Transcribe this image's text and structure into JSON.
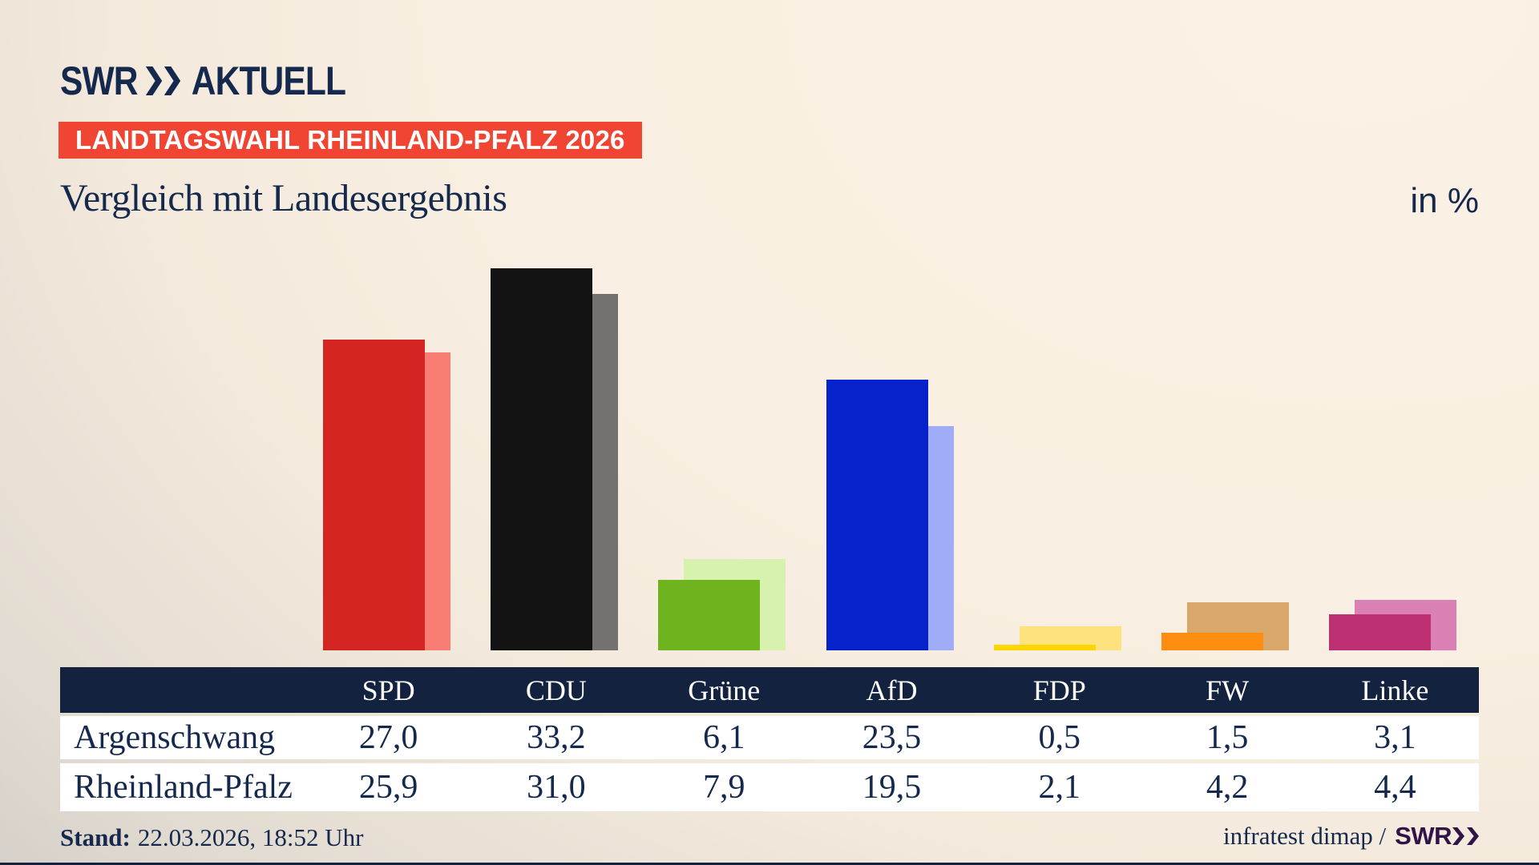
{
  "header": {
    "logo": {
      "brand": "SWR",
      "product": "AKTUELL"
    },
    "banner": "LANDTAGSWAHL RHEINLAND-PFALZ 2026",
    "title": "Vergleich mit Landesergebnis",
    "unit": "in %"
  },
  "chart_data": {
    "type": "bar",
    "title": "Vergleich mit Landesergebnis",
    "unit_label": "in %",
    "categories": [
      "SPD",
      "CDU",
      "Grüne",
      "AfD",
      "FDP",
      "FW",
      "Linke"
    ],
    "series": [
      {
        "name": "Argenschwang",
        "values": [
          27.0,
          33.2,
          6.1,
          23.5,
          0.5,
          1.5,
          3.1
        ]
      },
      {
        "name": "Rheinland-Pfalz",
        "values": [
          25.9,
          31.0,
          7.9,
          19.5,
          2.1,
          4.2,
          4.4
        ]
      }
    ],
    "xlabel": "",
    "ylabel": "in %",
    "ylim": [
      0,
      35
    ],
    "grid": false,
    "legend_position": "table-below-chart",
    "party_colors": [
      {
        "id": "spd",
        "party": "SPD",
        "main": "#d42522",
        "light": "#f87d73"
      },
      {
        "id": "cdu",
        "party": "CDU",
        "main": "#131313",
        "light": "#747271"
      },
      {
        "id": "gruene",
        "party": "Grüne",
        "main": "#6fb31e",
        "light": "#d7f2ae"
      },
      {
        "id": "afd",
        "party": "AfD",
        "main": "#0522cb",
        "light": "#9fadf9"
      },
      {
        "id": "fdp",
        "party": "FDP",
        "main": "#ffd500",
        "light": "#fee27e"
      },
      {
        "id": "fw",
        "party": "FW",
        "main": "#fc8d10",
        "light": "#d8a769"
      },
      {
        "id": "linke",
        "party": "Linke",
        "main": "#bd3173",
        "light": "#db80b5"
      }
    ]
  },
  "table": {
    "header_labels": [
      "SPD",
      "CDU",
      "Grüne",
      "AfD",
      "FDP",
      "FW",
      "Linke"
    ],
    "rows": [
      {
        "label": "Argenschwang",
        "cells": [
          "27,0",
          "33,2",
          "6,1",
          "23,5",
          "0,5",
          "1,5",
          "3,1"
        ]
      },
      {
        "label": "Rheinland-Pfalz",
        "cells": [
          "25,9",
          "31,0",
          "7,9",
          "19,5",
          "2,1",
          "4,2",
          "4,4"
        ]
      }
    ]
  },
  "footer": {
    "stand_label": "Stand:",
    "stand_value": "22.03.2026, 18:52 Uhr",
    "source": "infratest dimap /",
    "source_brand": "SWR"
  },
  "colors": {
    "navy_text": "#14294d",
    "banner_red": "#f04532",
    "table_header_bg": "#13233f",
    "row_bg": "#ffffff",
    "footer_brand_purple": "#301448",
    "background_cream": "#faf0e3",
    "background_gray": "#c8c5c1"
  }
}
